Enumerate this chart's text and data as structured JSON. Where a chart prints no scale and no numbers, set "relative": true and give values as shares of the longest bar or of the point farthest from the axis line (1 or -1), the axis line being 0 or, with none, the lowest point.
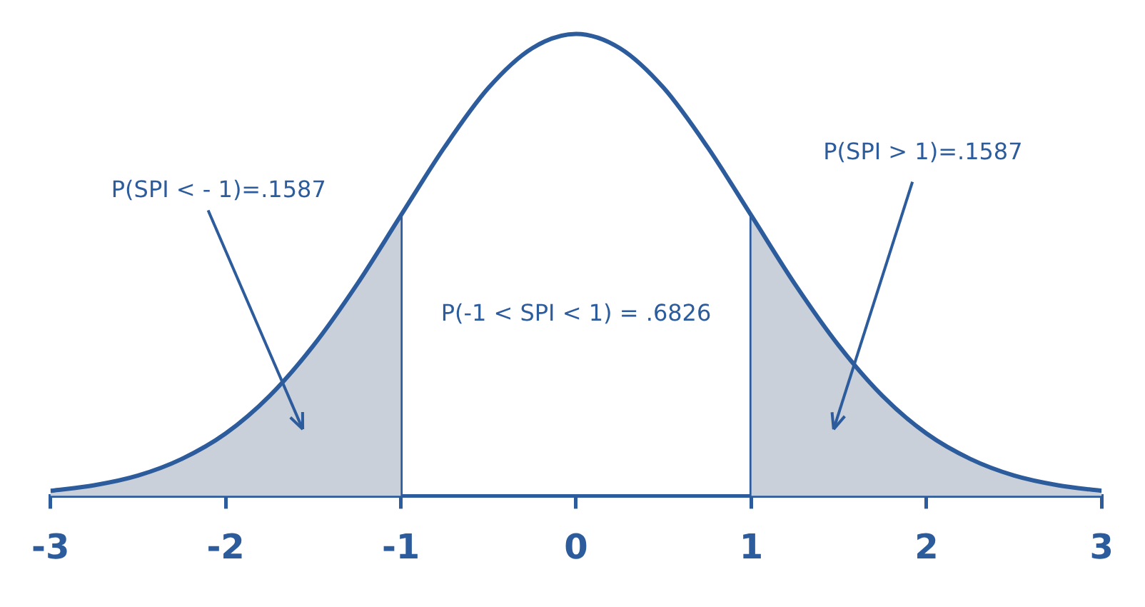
{
  "chart_data": {
    "type": "line",
    "relative": true,
    "x": [
      -3,
      -2.75,
      -2.5,
      -2.25,
      -2,
      -1.75,
      -1.5,
      -1.25,
      -1,
      -0.75,
      -0.5,
      -0.25,
      0,
      0.25,
      0.5,
      0.75,
      1,
      1.25,
      1.5,
      1.75,
      2,
      2.25,
      2.5,
      2.75,
      3
    ],
    "series": [
      {
        "type": "area",
        "color": "#c9d0da",
        "x": [
          -3,
          -2.75,
          -2.5,
          -2.25,
          -2,
          -1.75,
          -1.5,
          -1.25,
          -1
        ],
        "values": [
          0.011,
          0.023,
          0.044,
          0.08,
          0.135,
          0.216,
          0.325,
          0.458,
          0.607
        ]
      },
      {
        "type": "area",
        "color": "#c9d0da",
        "x": [
          1,
          1.25,
          1.5,
          1.75,
          2,
          2.25,
          2.5,
          2.75,
          3
        ],
        "values": [
          0.607,
          0.458,
          0.325,
          0.216,
          0.135,
          0.08,
          0.044,
          0.023,
          0.011
        ]
      },
      {
        "color": "#2d5c9c",
        "values": [
          0.011,
          0.023,
          0.044,
          0.08,
          0.135,
          0.216,
          0.325,
          0.458,
          0.607,
          0.755,
          0.883,
          0.969,
          1,
          0.969,
          0.883,
          0.755,
          0.607,
          0.458,
          0.325,
          0.216,
          0.135,
          0.08,
          0.044,
          0.023,
          0.011
        ]
      }
    ],
    "xlim": [
      -3,
      3
    ],
    "xticks": [
      -3,
      -2,
      -1,
      0,
      1,
      2,
      3
    ],
    "ref_lines": [
      {
        "axis": "x",
        "value": -1,
        "color": "#2d5c9c"
      },
      {
        "axis": "x",
        "value": 1,
        "color": "#2d5c9c"
      }
    ],
    "annotations": [
      "P(SPI < - 1)=.1587",
      "P(-1 < SPI < 1) = .6826",
      "P(SPI > 1)=.1587"
    ],
    "grid": false,
    "legend": false,
    "marker": "none",
    "line_style": "solid"
  }
}
